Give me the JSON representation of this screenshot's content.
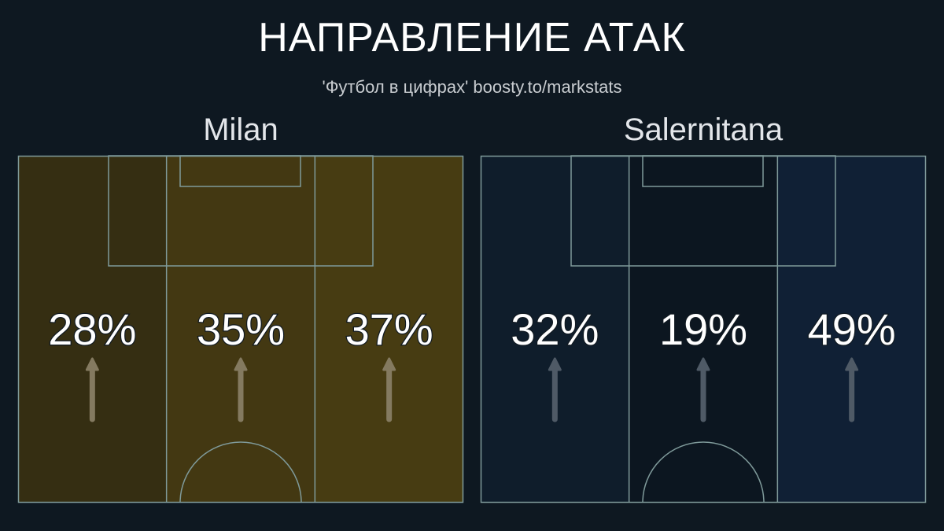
{
  "title": "НАПРАВЛЕНИЕ АТАК",
  "subtitle": "'Футбол в цифрах' boosty.to/markstats",
  "chart_data": [
    {
      "type": "heatmap",
      "team": "Milan",
      "categories": [
        "left",
        "center",
        "right"
      ],
      "values": [
        28,
        35,
        37
      ],
      "labels": [
        "28%",
        "35%",
        "37%"
      ],
      "colors": [
        "#352e12",
        "#433812",
        "#473c12"
      ],
      "arrow_color": "#847a60"
    },
    {
      "type": "heatmap",
      "team": "Salernitana",
      "categories": [
        "left",
        "center",
        "right"
      ],
      "values": [
        32,
        19,
        49
      ],
      "labels": [
        "32%",
        "19%",
        "49%"
      ],
      "colors": [
        "#0f1d2b",
        "#0c1620",
        "#102035"
      ],
      "arrow_color": "#4f5a66"
    }
  ],
  "line_color": "#7f9a9a"
}
